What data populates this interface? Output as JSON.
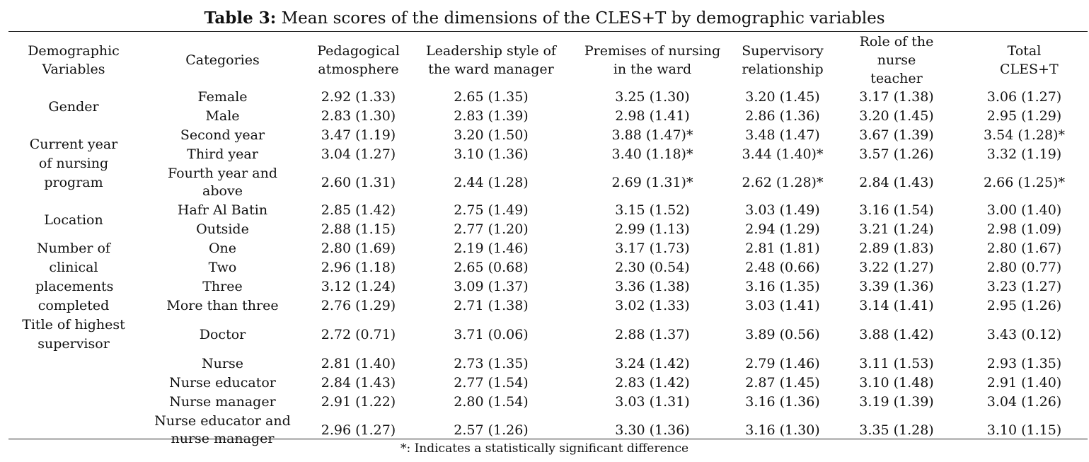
{
  "caption": {
    "label": "Table 3:",
    "text": " Mean scores of the dimensions of the CLES+T by demographic variables"
  },
  "headers": {
    "demographic": "Demographic Variables",
    "categories": "Categories",
    "pedagogical": "Pedagogical atmosphere",
    "leadership": "Leadership style of the ward manager",
    "premises": "Premises of nursing in the ward",
    "supervisory": "Supervisory relationship",
    "role": "Role of the nurse teacher",
    "total": "Total CLES+T"
  },
  "groups": {
    "gender": "Gender",
    "year": "Current year of nursing program",
    "location": "Location",
    "placements": "Number of clinical placements completed",
    "title": "Title of highest supervisor"
  },
  "rows": [
    {
      "category": "Female",
      "values": [
        "2.92 (1.33)",
        "2.65 (1.35)",
        "3.25 (1.30)",
        "3.20 (1.45)",
        "3.17 (1.38)",
        "3.06 (1.27)"
      ]
    },
    {
      "category": "Male",
      "values": [
        "2.83 (1.30)",
        "2.83 (1.39)",
        "2.98 (1.41)",
        "2.86 (1.36)",
        "3.20 (1.45)",
        "2.95 (1.29)"
      ]
    },
    {
      "category": "Second year",
      "values": [
        "3.47 (1.19)",
        "3.20 (1.50)",
        "3.88 (1.47)*",
        "3.48 (1.47)",
        "3.67 (1.39)",
        "3.54 (1.28)*"
      ]
    },
    {
      "category": "Third year",
      "values": [
        "3.04 (1.27)",
        "3.10 (1.36)",
        "3.40 (1.18)*",
        "3.44 (1.40)*",
        "3.57 (1.26)",
        "3.32 (1.19)"
      ]
    },
    {
      "category": "Fourth year and above",
      "values": [
        "2.60 (1.31)",
        "2.44 (1.28)",
        "2.69 (1.31)*",
        "2.62 (1.28)*",
        "2.84 (1.43)",
        "2.66 (1.25)*"
      ]
    },
    {
      "category": "Hafr Al Batin",
      "values": [
        "2.85 (1.42)",
        "2.75 (1.49)",
        "3.15 (1.52)",
        "3.03 (1.49)",
        "3.16 (1.54)",
        "3.00 (1.40)"
      ]
    },
    {
      "category": "Outside",
      "values": [
        "2.88 (1.15)",
        "2.77 (1.20)",
        "2.99 (1.13)",
        "2.94 (1.29)",
        "3.21 (1.24)",
        "2.98 (1.09)"
      ]
    },
    {
      "category": "One",
      "values": [
        "2.80 (1.69)",
        "2.19 (1.46)",
        "3.17 (1.73)",
        "2.81 (1.81)",
        "2.89 (1.83)",
        "2.80 (1.67)"
      ]
    },
    {
      "category": "Two",
      "values": [
        "2.96 (1.18)",
        "2.65 (0.68)",
        "2.30 (0.54)",
        "2.48 (0.66)",
        "3.22 (1.27)",
        "2.80 (0.77)"
      ]
    },
    {
      "category": "Three",
      "values": [
        "3.12 (1.24)",
        "3.09 (1.37)",
        "3.36 (1.38)",
        "3.16 (1.35)",
        "3.39 (1.36)",
        "3.23 (1.27)"
      ]
    },
    {
      "category": "More than three",
      "values": [
        "2.76 (1.29)",
        "2.71 (1.38)",
        "3.02 (1.33)",
        "3.03 (1.41)",
        "3.14 (1.41)",
        "2.95 (1.26)"
      ]
    },
    {
      "category": "Doctor",
      "values": [
        "2.72 (0.71)",
        "3.71 (0.06)",
        "2.88 (1.37)",
        "3.89 (0.56)",
        "3.88 (1.42)",
        "3.43 (0.12)"
      ]
    },
    {
      "category": "Nurse",
      "values": [
        "2.81 (1.40)",
        "2.73 (1.35)",
        "3.24 (1.42)",
        "2.79 (1.46)",
        "3.11 (1.53)",
        "2.93 (1.35)"
      ]
    },
    {
      "category": "Nurse educator",
      "values": [
        "2.84 (1.43)",
        "2.77 (1.54)",
        "2.83 (1.42)",
        "2.87 (1.45)",
        "3.10 (1.48)",
        "2.91 (1.40)"
      ]
    },
    {
      "category": "Nurse manager",
      "values": [
        "2.91 (1.22)",
        "2.80 (1.54)",
        "3.03 (1.31)",
        "3.16 (1.36)",
        "3.19 (1.39)",
        "3.04 (1.26)"
      ]
    },
    {
      "category": "Nurse educator and nurse manager",
      "values": [
        "2.96 (1.27)",
        "2.57 (1.26)",
        "3.30 (1.36)",
        "3.16 (1.30)",
        "3.35 (1.28)",
        "3.10 (1.15)"
      ]
    }
  ],
  "footnote": "*: Indicates a statistically significant difference"
}
